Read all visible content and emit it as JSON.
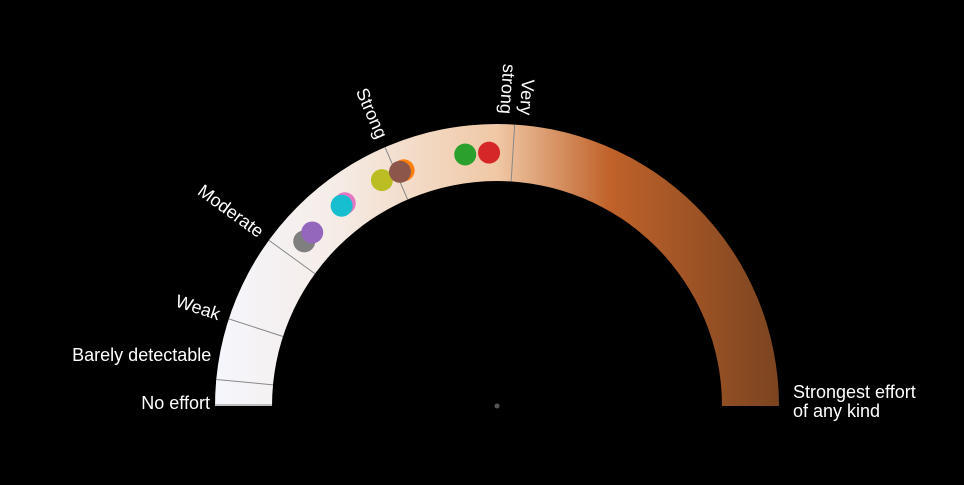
{
  "chart_data": {
    "type": "gauge",
    "scale": {
      "min": 0,
      "max": 1
    },
    "colors": {
      "background": "#000000",
      "gradient_stops": [
        {
          "value": 0.0,
          "color": "#f5f6fd"
        },
        {
          "value": 0.22,
          "color": "#f5ece6"
        },
        {
          "value": 0.5,
          "color": "#f0c8a5"
        },
        {
          "value": 0.7,
          "color": "#c0622a"
        },
        {
          "value": 1.0,
          "color": "#7a4420"
        }
      ],
      "tick_color": "#888888",
      "center_dot": "#555555"
    },
    "ticks": [
      {
        "label": "No effort",
        "value": 0.0,
        "rotate": false
      },
      {
        "label": "Barely detectable",
        "value": 0.03,
        "rotate": false
      },
      {
        "label": "Weak",
        "value": 0.1,
        "rotate": true
      },
      {
        "label": "Moderate",
        "value": 0.2,
        "rotate": true
      },
      {
        "label": "Strong",
        "value": 0.37,
        "rotate": true
      },
      {
        "label": "Very strong",
        "value": 0.52,
        "rotate": true,
        "lines": [
          "Very",
          "strong"
        ]
      }
    ],
    "end_label": {
      "lines": [
        "Strongest effort",
        "of any kind"
      ],
      "value": 1.0
    },
    "points": [
      {
        "color": "#7f7f7f",
        "value": 0.225
      },
      {
        "color": "#9467bd",
        "value": 0.24
      },
      {
        "color": "#e377c2",
        "value": 0.295
      },
      {
        "color": "#17becf",
        "value": 0.29
      },
      {
        "color": "#bcbd22",
        "value": 0.35
      },
      {
        "color": "#ff7f0e",
        "value": 0.38
      },
      {
        "color": "#8c564b",
        "value": 0.375
      },
      {
        "color": "#2ca02c",
        "value": 0.46
      },
      {
        "color": "#d62728",
        "value": 0.49
      }
    ]
  }
}
